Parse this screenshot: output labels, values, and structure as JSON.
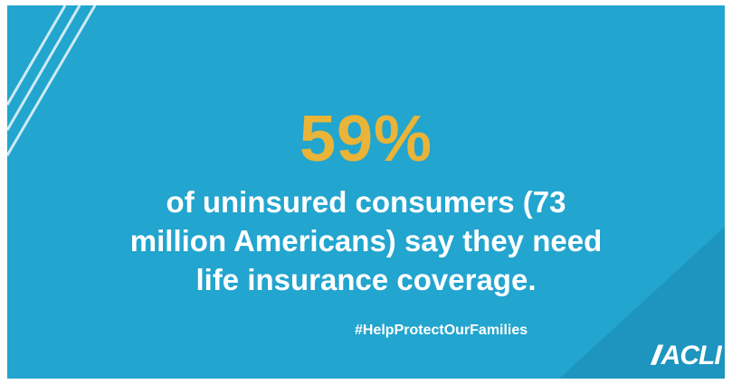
{
  "stat": {
    "value": "59%"
  },
  "description": {
    "lines": [
      "of uninsured consumers (73",
      "million Americans) say they need",
      "life insurance coverage."
    ]
  },
  "hashtag": "#HelpProtectOurFamilies",
  "logo": {
    "text": "ACLI"
  },
  "colors": {
    "background": "#22a5cf",
    "background_dark": "#1d95bf",
    "accent": "#e9b437",
    "text": "#ffffff"
  }
}
